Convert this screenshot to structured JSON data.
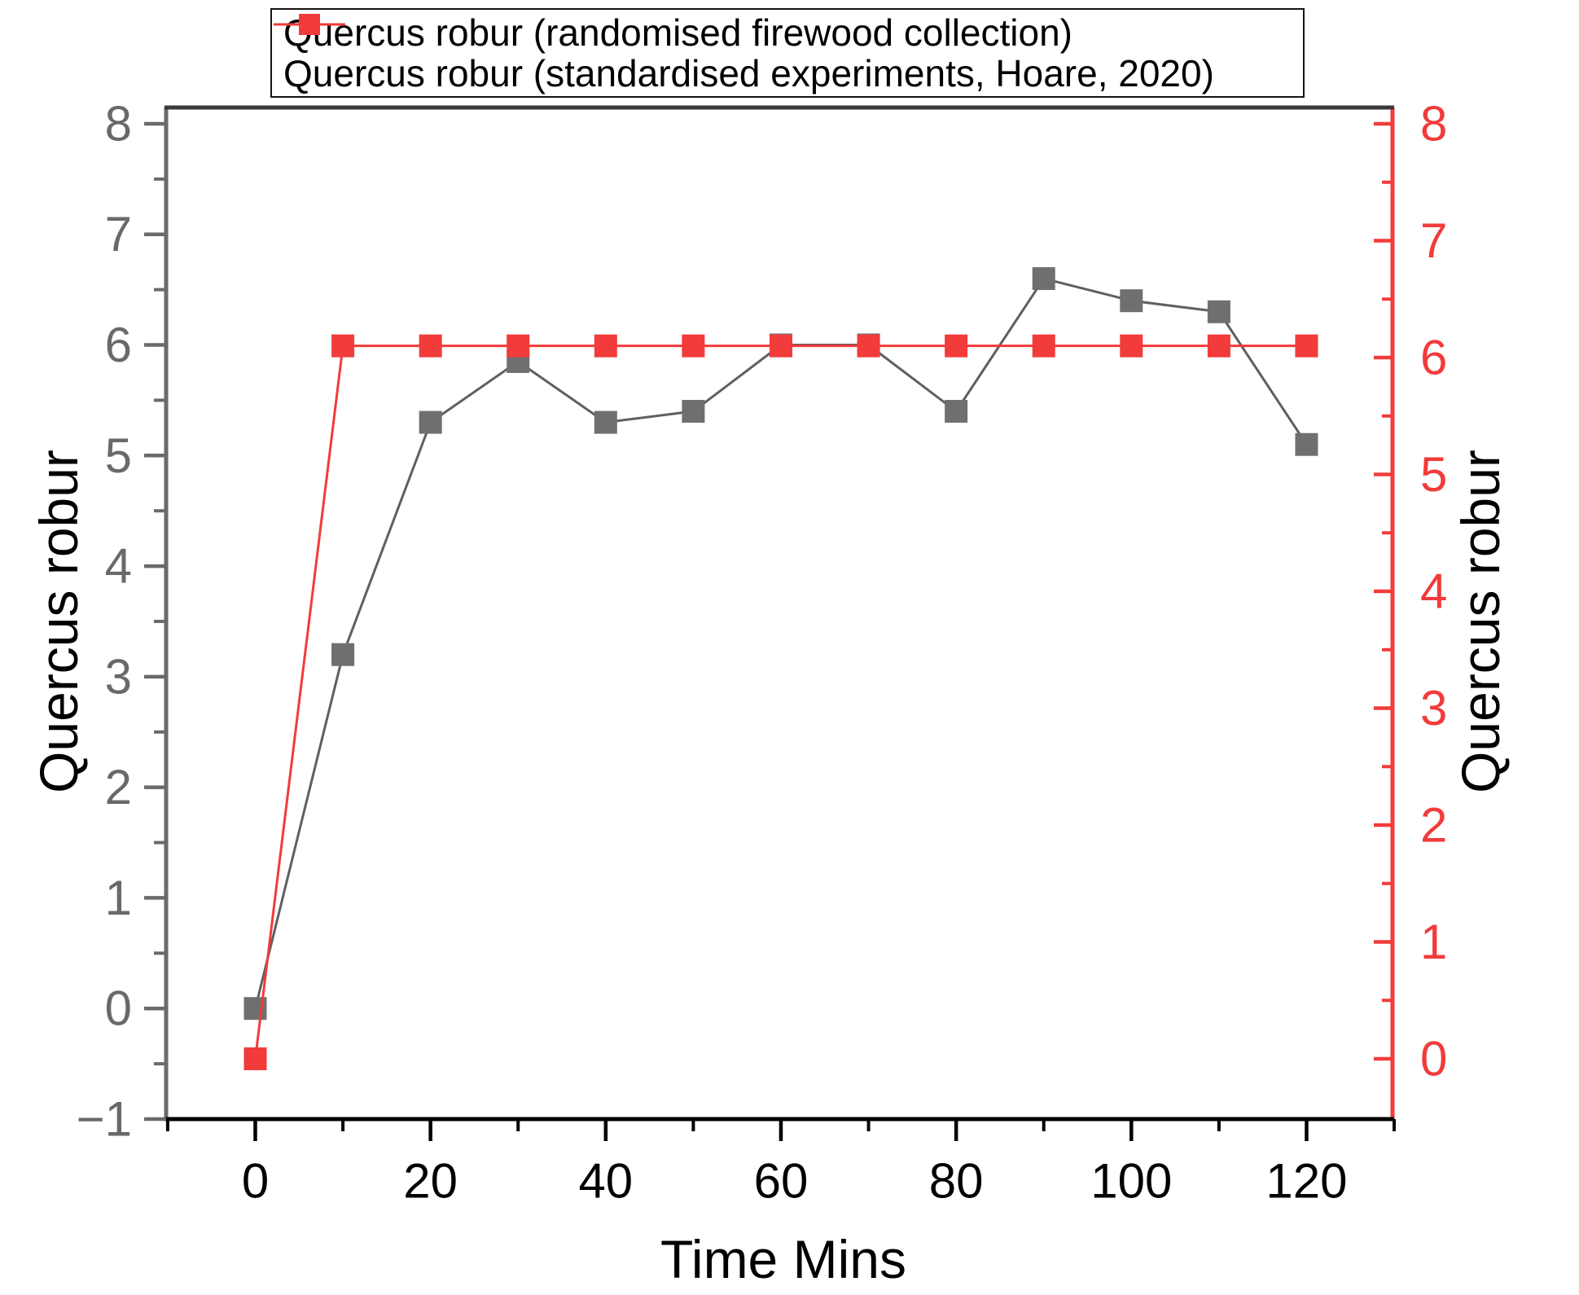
{
  "chart_data": {
    "type": "line",
    "title": "",
    "xlabel": "Time Mins",
    "ylabel_left": "Quercus robur",
    "ylabel_right": "Quercus robur",
    "x": [
      0,
      10,
      20,
      30,
      40,
      50,
      60,
      70,
      80,
      90,
      100,
      110,
      120
    ],
    "series": [
      {
        "name": "Quercus robur (randomised firewood collection)",
        "axis": "left",
        "marker": "square",
        "marker_color": "#6f6f6f",
        "line_color": "#5f5f5f",
        "values": [
          0,
          3.2,
          5.3,
          5.85,
          5.3,
          5.4,
          6.0,
          6.0,
          5.4,
          6.6,
          6.4,
          6.3,
          5.1
        ]
      },
      {
        "name": "Quercus robur (standardised experiments, Hoare, 2020)",
        "axis": "right",
        "marker": "square",
        "marker_color": "#f23b3b",
        "line_color": "#f23b3b",
        "values": [
          0,
          6.1,
          6.1,
          6.1,
          6.1,
          6.1,
          6.1,
          6.1,
          6.1,
          6.1,
          6.1,
          6.1,
          6.1
        ]
      }
    ],
    "x_ticks_major": [
      0,
      20,
      40,
      60,
      80,
      100,
      120
    ],
    "x_ticks_minor": [
      -10,
      10,
      30,
      50,
      70,
      90,
      110,
      130
    ],
    "left_ticks_major": [
      -1,
      0,
      1,
      2,
      3,
      4,
      5,
      6,
      7,
      8
    ],
    "left_ticks_minor": [
      -0.5,
      0.5,
      1.5,
      2.5,
      3.5,
      4.5,
      5.5,
      6.5,
      7.5
    ],
    "right_ticks_major": [
      0,
      1,
      2,
      3,
      4,
      5,
      6,
      7,
      8
    ],
    "right_ticks_minor": [
      0.5,
      1.5,
      2.5,
      3.5,
      4.5,
      5.5,
      6.5,
      7.5
    ],
    "x_range": [
      -10,
      130
    ],
    "left_range": [
      -1,
      8
    ],
    "right_range": [
      0,
      8
    ],
    "grid": "off",
    "legend_position": "top-center",
    "colors": {
      "left_axis": "#6a6a6a",
      "left_labels": "#696969",
      "bottom_axis": "#000000",
      "bottom_labels": "#000000",
      "top_frame": "#3a3a3a",
      "right_axis": "#f23b3b",
      "right_labels": "#f23b3b",
      "background": "#ffffff"
    }
  }
}
